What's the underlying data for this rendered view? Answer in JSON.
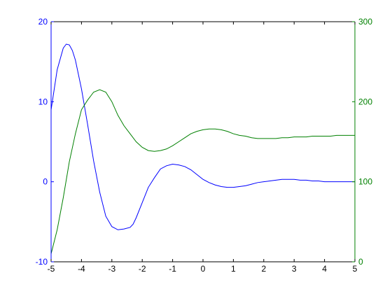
{
  "chart_data": {
    "type": "line",
    "title": "",
    "xlabel": "",
    "ylabel": "",
    "xlim": [
      -5,
      5
    ],
    "x_ticks": [
      "-5",
      "-4",
      "-3",
      "-2",
      "-1",
      "0",
      "1",
      "2",
      "3",
      "4",
      "5"
    ],
    "y_left": {
      "lim": [
        -10,
        20
      ],
      "ticks": [
        "-10",
        "0",
        "10",
        "20"
      ],
      "color": "#0000ff"
    },
    "y_right": {
      "lim": [
        0,
        300
      ],
      "ticks": [
        "0",
        "100",
        "200",
        "300"
      ],
      "color": "#008000"
    },
    "axis_color": "#000000",
    "grid": false,
    "legend": "none",
    "series": [
      {
        "axis": "left",
        "color": "#0000ff",
        "x": [
          -5.0,
          -4.8,
          -4.6,
          -4.5,
          -4.4,
          -4.3,
          -4.2,
          -4.0,
          -3.8,
          -3.6,
          -3.4,
          -3.2,
          -3.0,
          -2.8,
          -2.6,
          -2.4,
          -2.3,
          -2.2,
          -2.0,
          -1.8,
          -1.6,
          -1.4,
          -1.2,
          -1.0,
          -0.8,
          -0.6,
          -0.4,
          -0.2,
          0.0,
          0.2,
          0.4,
          0.6,
          0.8,
          1.0,
          1.2,
          1.4,
          1.6,
          1.8,
          2.0,
          2.2,
          2.4,
          2.6,
          2.8,
          3.0,
          3.2,
          3.4,
          3.6,
          3.8,
          4.0,
          4.2,
          4.4,
          4.6,
          4.8,
          5.0
        ],
        "y": [
          9.0,
          14.0,
          16.7,
          17.2,
          17.1,
          16.4,
          15.2,
          11.6,
          7.2,
          2.6,
          -1.3,
          -4.3,
          -5.6,
          -6.0,
          -5.9,
          -5.7,
          -5.3,
          -4.5,
          -2.6,
          -0.7,
          0.5,
          1.6,
          2.0,
          2.2,
          2.1,
          1.9,
          1.5,
          0.9,
          0.3,
          -0.1,
          -0.4,
          -0.6,
          -0.7,
          -0.7,
          -0.6,
          -0.5,
          -0.3,
          -0.1,
          0.0,
          0.1,
          0.2,
          0.3,
          0.3,
          0.3,
          0.2,
          0.2,
          0.1,
          0.1,
          0.0,
          0.0,
          0.0,
          0.0,
          0.0,
          0.0
        ]
      },
      {
        "axis": "right",
        "color": "#008000",
        "x": [
          -5.0,
          -4.8,
          -4.6,
          -4.4,
          -4.2,
          -4.0,
          -3.8,
          -3.6,
          -3.4,
          -3.2,
          -3.0,
          -2.8,
          -2.6,
          -2.4,
          -2.2,
          -2.0,
          -1.8,
          -1.6,
          -1.4,
          -1.2,
          -1.0,
          -0.8,
          -0.6,
          -0.4,
          -0.2,
          0.0,
          0.2,
          0.4,
          0.6,
          0.8,
          1.0,
          1.2,
          1.4,
          1.6,
          1.8,
          2.0,
          2.2,
          2.4,
          2.6,
          2.8,
          3.0,
          3.2,
          3.4,
          3.6,
          3.8,
          4.0,
          4.2,
          4.4,
          4.6,
          4.8,
          5.0
        ],
        "y": [
          10,
          40,
          80,
          125,
          160,
          190,
          202,
          212,
          215,
          212,
          200,
          183,
          170,
          160,
          150,
          143,
          139,
          138,
          139,
          141,
          145,
          150,
          155,
          160,
          163,
          165,
          166,
          166,
          165,
          163,
          160,
          158,
          157,
          155,
          154,
          154,
          154,
          154,
          155,
          155,
          156,
          156,
          156,
          157,
          157,
          157,
          157,
          158,
          158,
          158,
          158
        ]
      }
    ]
  }
}
